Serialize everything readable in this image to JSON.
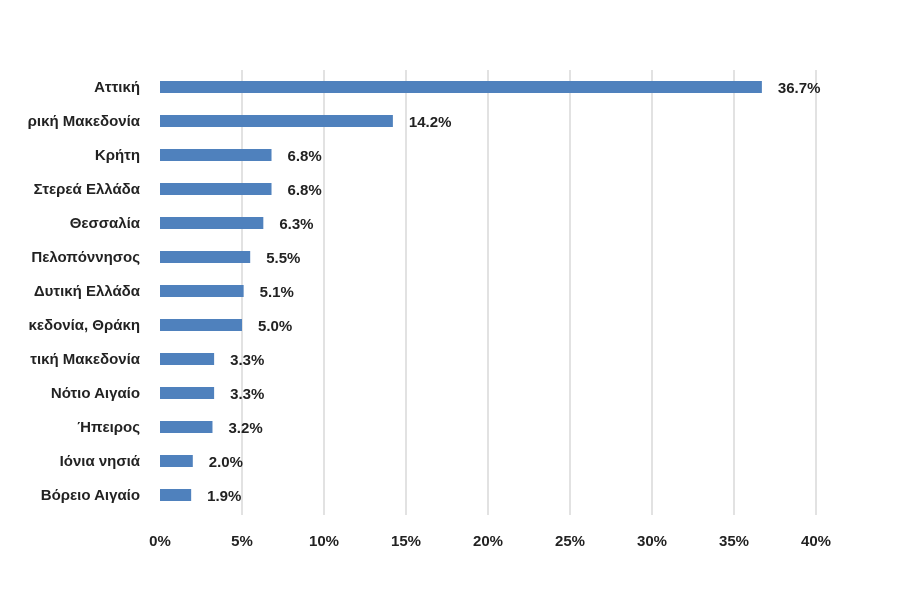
{
  "chart_data": {
    "type": "bar",
    "orientation": "horizontal",
    "categories": [
      "Αττική",
      "ρική Μακεδονία",
      "Κρήτη",
      "Στερεά Ελλάδα",
      "Θεσσαλία",
      "Πελοπόννησος",
      "Δυτική Ελλάδα",
      "κεδονία, Θράκη",
      "τική Μακεδονία",
      "Νότιο Αιγαίο",
      "Ήπειρος",
      "Ιόνια νησιά",
      "Βόρειο Αιγαίο"
    ],
    "values": [
      36.7,
      14.2,
      6.8,
      6.8,
      6.3,
      5.5,
      5.1,
      5.0,
      3.3,
      3.3,
      3.2,
      2.0,
      1.9
    ],
    "value_labels": [
      "36.7%",
      "14.2%",
      "6.8%",
      "6.8%",
      "6.3%",
      "5.5%",
      "5.1%",
      "5.0%",
      "3.3%",
      "3.3%",
      "3.2%",
      "2.0%",
      "1.9%"
    ],
    "xlim": [
      0,
      40
    ],
    "x_ticks": [
      0,
      5,
      10,
      15,
      20,
      25,
      30,
      35,
      40
    ],
    "x_tick_labels": [
      "0%",
      "5%",
      "10%",
      "15%",
      "20%",
      "25%",
      "30%",
      "35%",
      "40%"
    ],
    "grid": true,
    "legend": "none",
    "bar_color": "#4f81bd",
    "grid_color": "#d9d9d9"
  }
}
